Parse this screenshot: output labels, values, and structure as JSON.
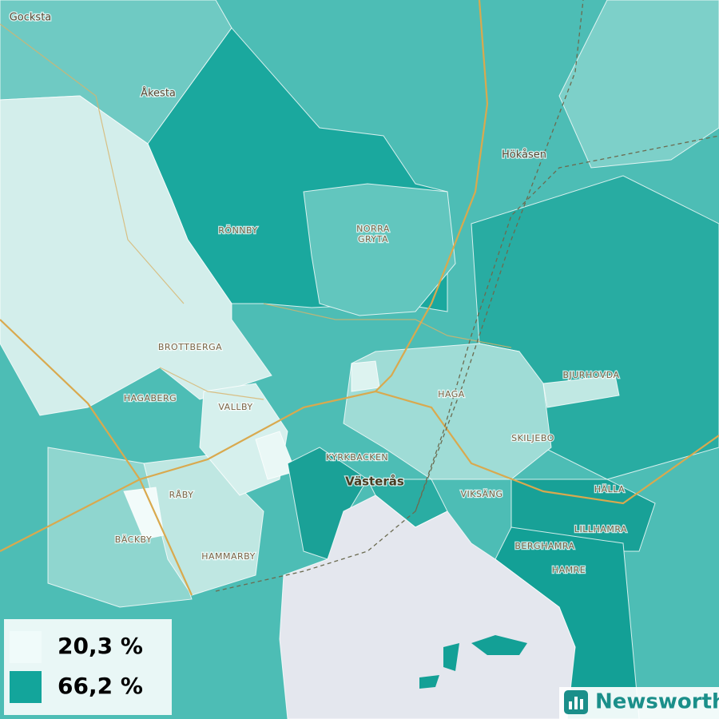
{
  "places": [
    {
      "name": "Gocksta"
    },
    {
      "name": "Åkesta"
    },
    {
      "name": "Hökåsen"
    },
    {
      "name": "RÖNNBY"
    },
    {
      "name": "NORRA"
    },
    {
      "name": "GRYTA"
    },
    {
      "name": "BROTTBERGA"
    },
    {
      "name": "HAGABERG"
    },
    {
      "name": "VALLBY"
    },
    {
      "name": "HAGA"
    },
    {
      "name": "BJURHOVDA"
    },
    {
      "name": "SKILJEBO"
    },
    {
      "name": "KYRKBACKEN"
    },
    {
      "name": "Västerås"
    },
    {
      "name": "VIKSÄNG"
    },
    {
      "name": "HÄLLA"
    },
    {
      "name": "RÅBY"
    },
    {
      "name": "BÄCKBY"
    },
    {
      "name": "HAMMARBY"
    },
    {
      "name": "LILLHAMRA"
    },
    {
      "name": "BERGHAMRA"
    },
    {
      "name": "HAMRE"
    }
  ],
  "legend": {
    "items": [
      {
        "label": "20,3 %",
        "color": "#f0fbfa"
      },
      {
        "label": "66,2 %",
        "color": "#13a59b"
      }
    ]
  },
  "brand": "Newsworthy"
}
